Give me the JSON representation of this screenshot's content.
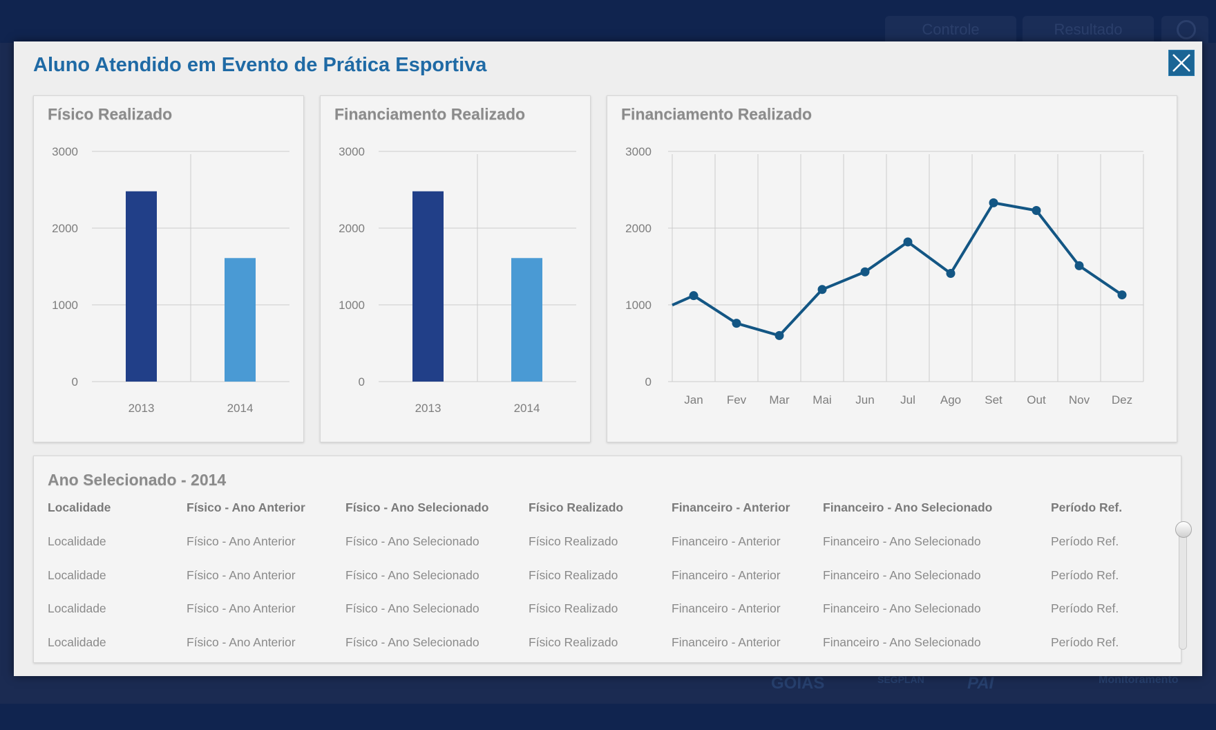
{
  "nav": {
    "tabs": [
      {
        "label": "Controle"
      },
      {
        "label": "Resultado"
      }
    ],
    "power_icon": "power-icon"
  },
  "footer": {
    "logos": [
      "GOIÁS",
      "SEGPLAN",
      "PAI",
      "Monitoramento"
    ]
  },
  "modal": {
    "title": "Aluno Atendido em Evento de Prática Esportiva",
    "close_icon": "close-icon",
    "colors": {
      "title": "#1f6aa5",
      "bar_2013": "#213f88",
      "bar_2014": "#4a9ad4",
      "line": "#135684"
    }
  },
  "chart_data": [
    {
      "type": "bar",
      "title": "Físico Realizado",
      "categories": [
        "2013",
        "2014"
      ],
      "values": [
        2480,
        1610
      ],
      "ylim": [
        0,
        3000
      ],
      "yticks": [
        0,
        1000,
        2000,
        3000
      ],
      "grid": true
    },
    {
      "type": "bar",
      "title": "Financiamento Realizado",
      "categories": [
        "2013",
        "2014"
      ],
      "values": [
        2480,
        1610
      ],
      "ylim": [
        0,
        3000
      ],
      "yticks": [
        0,
        1000,
        2000,
        3000
      ],
      "grid": true
    },
    {
      "type": "line",
      "title": "Financiamento Realizado",
      "categories": [
        "Jan",
        "Fev",
        "Mar",
        "Mai",
        "Jun",
        "Jul",
        "Ago",
        "Set",
        "Out",
        "Nov",
        "Dez"
      ],
      "values": [
        1120,
        760,
        600,
        1200,
        1430,
        1820,
        1410,
        2330,
        2230,
        1510,
        1130
      ],
      "ylim": [
        0,
        3000
      ],
      "yticks": [
        0,
        1000,
        2000,
        3000
      ],
      "grid": true
    }
  ],
  "table": {
    "title": "Ano Selecionado - 2014",
    "headers": [
      "Localidade",
      "Físico - Ano Anterior",
      "Físico - Ano Selecionado",
      "Físico Realizado",
      "Financeiro - Anterior",
      "Financeiro - Ano Selecionado",
      "Período Ref."
    ],
    "rows": [
      [
        "Localidade",
        "Físico - Ano Anterior",
        "Físico - Ano Selecionado",
        "Físico Realizado",
        "Financeiro - Anterior",
        "Financeiro - Ano Selecionado",
        "Período Ref."
      ],
      [
        "Localidade",
        "Físico - Ano Anterior",
        "Físico - Ano Selecionado",
        "Físico Realizado",
        "Financeiro - Anterior",
        "Financeiro - Ano Selecionado",
        "Período Ref."
      ],
      [
        "Localidade",
        "Físico - Ano Anterior",
        "Físico - Ano Selecionado",
        "Físico Realizado",
        "Financeiro - Anterior",
        "Financeiro - Ano Selecionado",
        "Período Ref."
      ],
      [
        "Localidade",
        "Físico - Ano Anterior",
        "Físico - Ano Selecionado",
        "Físico Realizado",
        "Financeiro - Anterior",
        "Financeiro - Ano Selecionado",
        "Período Ref."
      ]
    ]
  }
}
